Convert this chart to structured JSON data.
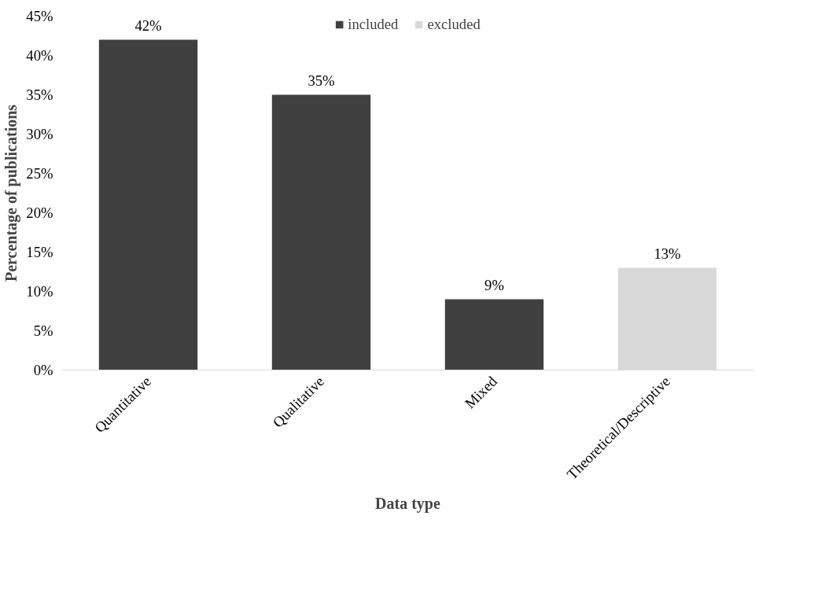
{
  "chart_data": {
    "type": "bar",
    "xlabel": "Data type",
    "ylabel": "Percentage of publications",
    "categories": [
      "Quantitative",
      "Qualitative",
      "Mixed",
      "Theoretical/Descriptive"
    ],
    "series": [
      {
        "name": "included",
        "color": "#404040",
        "values": [
          42,
          35,
          9,
          null
        ],
        "value_labels": [
          "42%",
          "35%",
          "9%",
          null
        ]
      },
      {
        "name": "excluded",
        "color": "#d9d9d9",
        "values": [
          null,
          null,
          null,
          13
        ],
        "value_labels": [
          null,
          null,
          null,
          "13%"
        ]
      }
    ],
    "ylim": [
      0,
      45
    ],
    "yticks": [
      {
        "value": 0,
        "label": "0%"
      },
      {
        "value": 5,
        "label": "5%"
      },
      {
        "value": 10,
        "label": "10%"
      },
      {
        "value": 15,
        "label": "15%"
      },
      {
        "value": 20,
        "label": "20%"
      },
      {
        "value": 25,
        "label": "25%"
      },
      {
        "value": 30,
        "label": "30%"
      },
      {
        "value": 35,
        "label": "35%"
      },
      {
        "value": 40,
        "label": "40%"
      },
      {
        "value": 45,
        "label": "45%"
      }
    ],
    "grid": false,
    "legend": "top"
  }
}
